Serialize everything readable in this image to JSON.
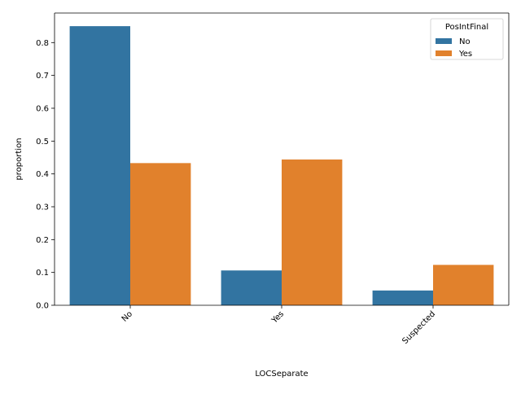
{
  "chart_data": {
    "type": "bar",
    "title": "",
    "xlabel": "LOCSeparate",
    "ylabel": "proportion",
    "categories": [
      "No",
      "Yes",
      "Suspected"
    ],
    "series": [
      {
        "name": "No",
        "values": [
          0.85,
          0.106,
          0.045
        ],
        "color": "#3274a1"
      },
      {
        "name": "Yes",
        "values": [
          0.433,
          0.444,
          0.123
        ],
        "color": "#e1812c"
      }
    ],
    "ylim": [
      0,
      0.89
    ],
    "yticks": [
      "0.0",
      "0.1",
      "0.2",
      "0.3",
      "0.4",
      "0.5",
      "0.6",
      "0.7",
      "0.8"
    ],
    "grid": false,
    "legend": {
      "title": "PosIntFinal",
      "placement": "top-right"
    }
  }
}
